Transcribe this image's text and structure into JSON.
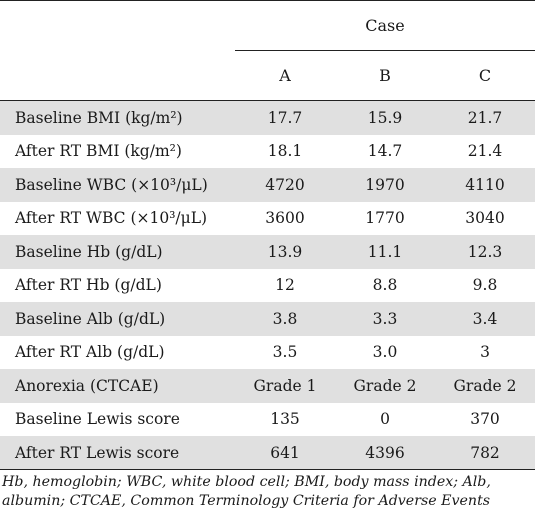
{
  "header": {
    "group_label": "Case",
    "columns": [
      "A",
      "B",
      "C"
    ]
  },
  "rows": [
    {
      "label": "Baseline BMI (kg/m²)",
      "values": [
        "17.7",
        "15.9",
        "21.7"
      ]
    },
    {
      "label": "After RT BMI (kg/m²)",
      "values": [
        "18.1",
        "14.7",
        "21.4"
      ]
    },
    {
      "label": "Baseline WBC (×10³/μL)",
      "values": [
        "4720",
        "1970",
        "4110"
      ]
    },
    {
      "label": "After RT WBC (×10³/μL)",
      "values": [
        "3600",
        "1770",
        "3040"
      ]
    },
    {
      "label": "Baseline Hb (g/dL)",
      "values": [
        "13.9",
        "11.1",
        "12.3"
      ]
    },
    {
      "label": "After RT Hb (g/dL)",
      "values": [
        "12",
        "8.8",
        "9.8"
      ]
    },
    {
      "label": "Baseline Alb (g/dL)",
      "values": [
        "3.8",
        "3.3",
        "3.4"
      ]
    },
    {
      "label": "After RT Alb (g/dL)",
      "values": [
        "3.5",
        "3.0",
        "3"
      ]
    },
    {
      "label": "Anorexia (CTCAE)",
      "values": [
        "Grade 1",
        "Grade 2",
        "Grade 2"
      ]
    },
    {
      "label": "Baseline Lewis score",
      "values": [
        "135",
        "0",
        "370"
      ]
    },
    {
      "label": "After RT Lewis score",
      "values": [
        "641",
        "4396",
        "782"
      ]
    }
  ],
  "footnote": "Hb, hemoglobin; WBC, white blood cell; BMI, body mass index; Alb, albumin; CTCAE, Common Terminology Criteria for Adverse Events",
  "colors": {
    "shade": "#e0e0e0",
    "rule": "#222222"
  }
}
